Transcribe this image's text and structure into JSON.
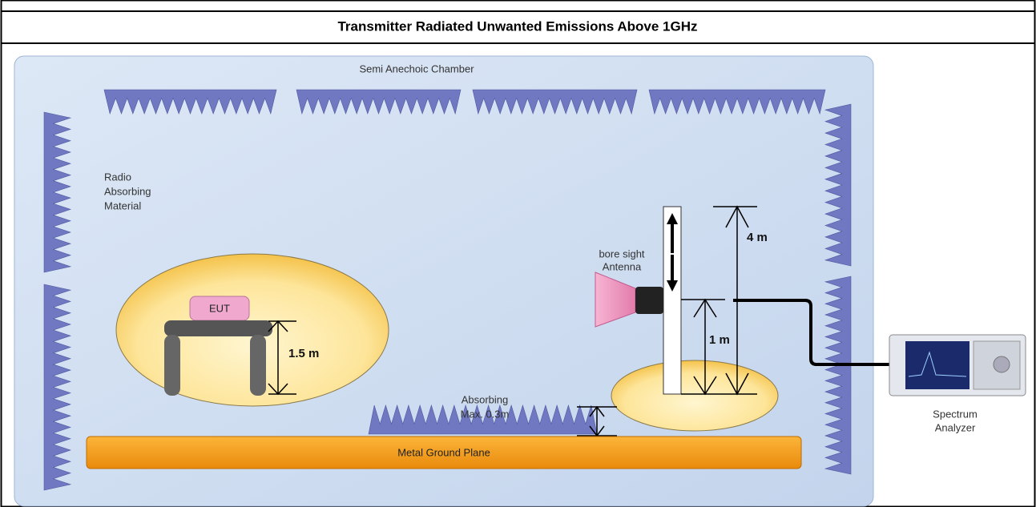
{
  "header": {
    "title": "Transmitter Radiated Unwanted Emissions Above 1GHz"
  },
  "diagram": {
    "chamber_label": "Semi Anechoic Chamber",
    "absorber_label": [
      "Radio",
      "Absorbing",
      "Material"
    ],
    "eut_label": "EUT",
    "eut_height": "1.5 m",
    "antenna_label": [
      "bore sight",
      "Antenna"
    ],
    "mast_max": "4 m",
    "mast_min": "1 m",
    "floor_absorber_label": [
      "Absorbing",
      "Max. 0.3m"
    ],
    "ground_plane": "Metal Ground Plane",
    "analyzer_label": [
      "Spectrum",
      "Analyzer"
    ]
  }
}
